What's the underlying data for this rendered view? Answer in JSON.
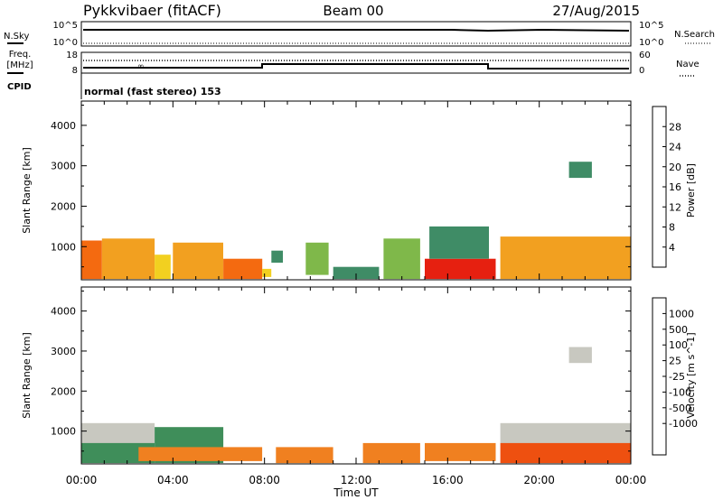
{
  "header": {
    "radar": "Pykkvibaer (fitACF)",
    "beam": "Beam 00",
    "date": "27/Aug/2015"
  },
  "top_panels": {
    "nsky": {
      "label": "N.Sky",
      "tick_top": "10^5",
      "tick_bottom": "10^0"
    },
    "nsearch": {
      "label": "N.Search",
      "tick_top": "10^5",
      "tick_bottom": "10^0"
    },
    "freq": {
      "label_line1": "Freq.",
      "label_line2": "[MHz]",
      "tick_top": "18",
      "tick_bottom": "8"
    },
    "nave": {
      "label": "Nave",
      "tick_top": "60",
      "tick_bottom": "0"
    },
    "cpid": {
      "label": "CPID",
      "text": "normal (fast stereo) 153"
    }
  },
  "colors": {
    "power_scale": [
      "#1f2fe0",
      "#2a55b8",
      "#3f8c66",
      "#7fb84a",
      "#f2d020",
      "#f2a020",
      "#f46a10",
      "#e62010"
    ],
    "velocity_scale": [
      "#2030c0",
      "#2f62b8",
      "#3f8e5a",
      "#7cc440",
      "#c8c8c0",
      "#c8c8c0",
      "#f0b020",
      "#f08020",
      "#ee5010",
      "#e02010"
    ]
  },
  "chart_data": [
    {
      "type": "heatmap",
      "name": "power",
      "xlabel": "",
      "ylabel": "Slant Range [km]",
      "x_ticks": [
        "00:00",
        "04:00",
        "08:00",
        "12:00",
        "16:00",
        "20:00",
        "00:00"
      ],
      "y_ticks": [
        1000,
        2000,
        3000,
        4000
      ],
      "ylim": [
        180,
        4600
      ],
      "colorbar": {
        "label": "Power [dB]",
        "ticks": [
          4,
          8,
          12,
          16,
          20,
          24,
          28
        ],
        "range": [
          0,
          32
        ]
      },
      "cells": [
        {
          "t0": 0.0,
          "t1": 0.9,
          "r0": 200,
          "r1": 1150,
          "v": 24
        },
        {
          "t0": 0.9,
          "t1": 3.2,
          "r0": 200,
          "r1": 1200,
          "v": 20
        },
        {
          "t0": 3.2,
          "t1": 3.9,
          "r0": 200,
          "r1": 800,
          "v": 18
        },
        {
          "t0": 4.0,
          "t1": 6.2,
          "r0": 200,
          "r1": 1100,
          "v": 22
        },
        {
          "t0": 6.2,
          "t1": 7.9,
          "r0": 200,
          "r1": 700,
          "v": 24
        },
        {
          "t0": 7.9,
          "t1": 8.3,
          "r0": 250,
          "r1": 450,
          "v": 18
        },
        {
          "t0": 8.3,
          "t1": 8.8,
          "r0": 600,
          "r1": 900,
          "v": 8
        },
        {
          "t0": 9.8,
          "t1": 10.8,
          "r0": 300,
          "r1": 1100,
          "v": 12
        },
        {
          "t0": 11.0,
          "t1": 13.0,
          "r0": 200,
          "r1": 500,
          "v": 8
        },
        {
          "t0": 13.2,
          "t1": 14.8,
          "r0": 200,
          "r1": 1200,
          "v": 12
        },
        {
          "t0": 15.0,
          "t1": 18.1,
          "r0": 200,
          "r1": 700,
          "v": 28
        },
        {
          "t0": 15.2,
          "t1": 17.8,
          "r0": 700,
          "r1": 1500,
          "v": 8
        },
        {
          "t0": 18.3,
          "t1": 24.0,
          "r0": 200,
          "r1": 1250,
          "v": 22
        },
        {
          "t0": 21.3,
          "t1": 22.3,
          "r0": 2700,
          "r1": 3100,
          "v": 8
        }
      ]
    },
    {
      "type": "heatmap",
      "name": "velocity",
      "xlabel": "Time UT",
      "ylabel": "Slant Range [km]",
      "x_ticks": [
        "00:00",
        "04:00",
        "08:00",
        "12:00",
        "16:00",
        "20:00",
        "00:00"
      ],
      "y_ticks": [
        1000,
        2000,
        3000,
        4000
      ],
      "ylim": [
        180,
        4600
      ],
      "colorbar": {
        "label": "Velocity [m s^-1]",
        "ticks": [
          "1000",
          "500",
          "100",
          "25",
          "-25",
          "-100",
          "-500",
          "-1000"
        ]
      },
      "cells": [
        {
          "t0": 0.0,
          "t1": 3.2,
          "r0": 700,
          "r1": 1200,
          "v": 0
        },
        {
          "t0": 0.0,
          "t1": 3.2,
          "r0": 200,
          "r1": 700,
          "v": 100
        },
        {
          "t0": 3.2,
          "t1": 6.2,
          "r0": 200,
          "r1": 1100,
          "v": 100
        },
        {
          "t0": 2.5,
          "t1": 7.9,
          "r0": 250,
          "r1": 600,
          "v": -100
        },
        {
          "t0": 8.5,
          "t1": 11.0,
          "r0": 200,
          "r1": 600,
          "v": -100
        },
        {
          "t0": 12.3,
          "t1": 14.8,
          "r0": 200,
          "r1": 700,
          "v": -100
        },
        {
          "t0": 15.0,
          "t1": 18.1,
          "r0": 250,
          "r1": 700,
          "v": -100
        },
        {
          "t0": 18.3,
          "t1": 24.0,
          "r0": 700,
          "r1": 1200,
          "v": 0
        },
        {
          "t0": 18.3,
          "t1": 24.0,
          "r0": 200,
          "r1": 700,
          "v": -500
        },
        {
          "t0": 21.3,
          "t1": 22.3,
          "r0": 2700,
          "r1": 3100,
          "v": 0
        }
      ]
    }
  ]
}
